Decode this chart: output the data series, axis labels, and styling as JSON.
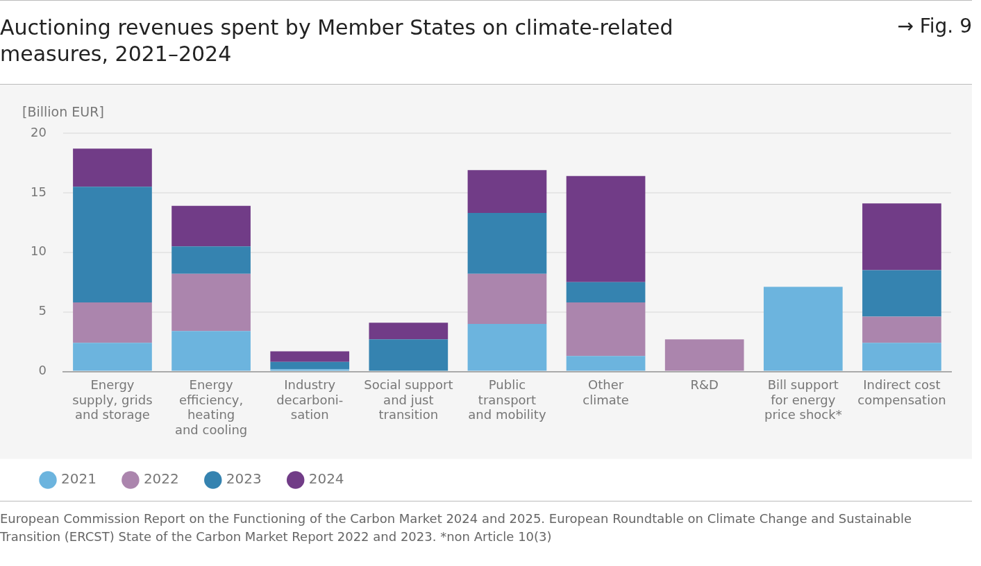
{
  "chart_data": {
    "type": "bar",
    "title": "Auctioning revenues spent by Member States on climate-related measures, 2021–2024",
    "ylabel": "[Billion EUR]",
    "stacked": true,
    "grid": "y",
    "legend": "bottom left",
    "categories": [
      "Energy\nsupply, grids\nand storage",
      "Energy\nefficiency,\nheating\nand cooling",
      "Industry\ndecarboni-\nsation",
      "Social support\nand just\ntransition",
      "Public\ntransport\nand mobility",
      "Other\nclimate",
      "R&D",
      "Bill support\nfor energy\nprice shock*",
      "Indirect cost\ncompensation"
    ],
    "series": [
      {
        "name": "2021",
        "color": "#6cb4de",
        "values": [
          2.4,
          3.4,
          0.2,
          0,
          4.0,
          1.3,
          0,
          7.1,
          2.4
        ]
      },
      {
        "name": "2022",
        "color": "#ab85ad",
        "values": [
          3.4,
          4.8,
          0,
          0,
          4.2,
          4.5,
          2.7,
          0,
          2.2
        ]
      },
      {
        "name": "2023",
        "color": "#3583b0",
        "values": [
          9.7,
          2.3,
          0.6,
          2.7,
          5.1,
          1.7,
          0,
          0,
          3.9
        ]
      },
      {
        "name": "2024",
        "color": "#713c87",
        "values": [
          3.2,
          3.4,
          0.9,
          1.4,
          3.6,
          8.9,
          0,
          0,
          5.6
        ]
      }
    ],
    "ylim": [
      0,
      20
    ],
    "yticks": [
      0,
      5,
      10,
      15,
      20
    ],
    "annotations": [
      "→ Fig. 9",
      "European Commission Report on the Functioning of the Carbon Market 2024 and 2025. European Roundtable on Climate Change and Sustainable Transition (ERCST) State of the Carbon Market Report 2022 and 2023. *non Article 10(3)"
    ]
  }
}
